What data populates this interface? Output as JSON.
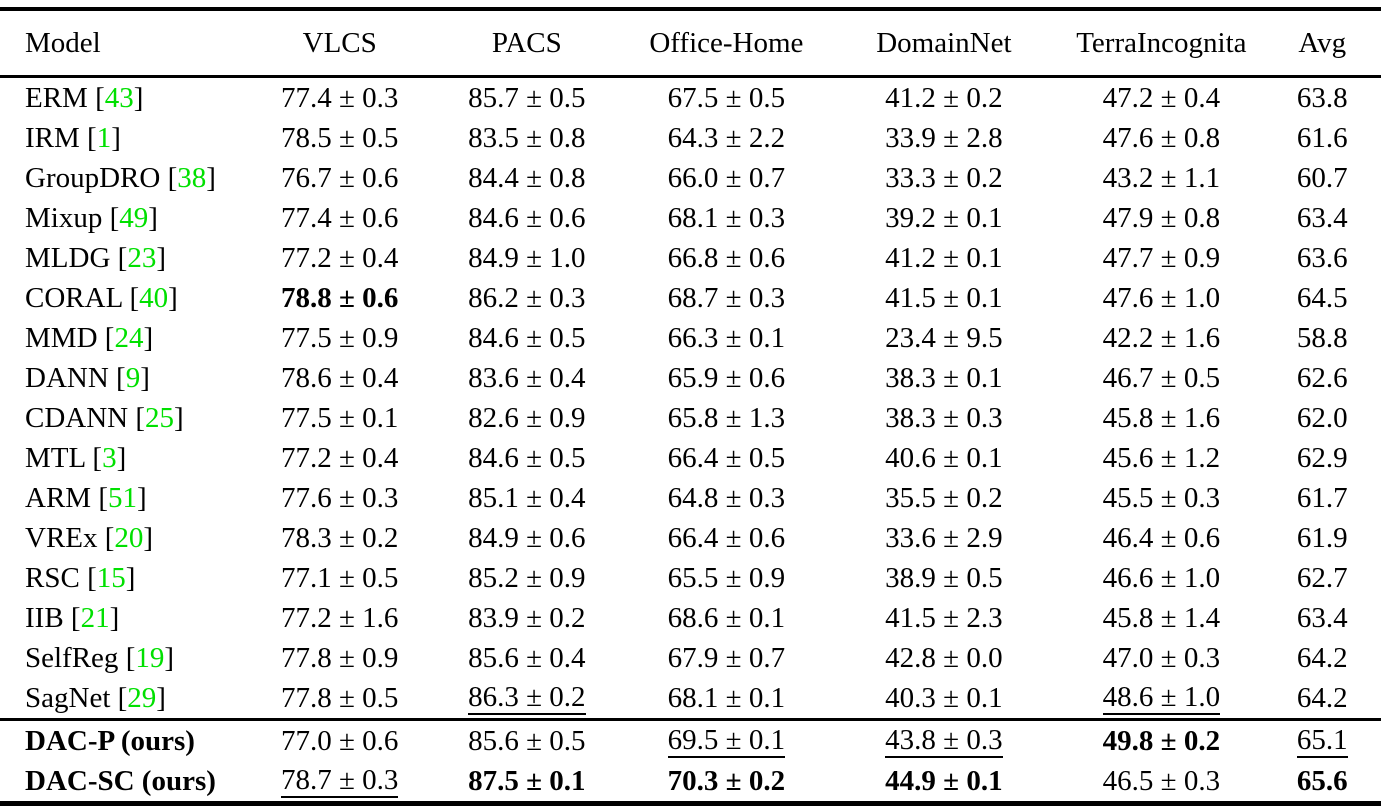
{
  "page": {
    "background": "#ffffff",
    "text_color": "#000000"
  },
  "table": {
    "citation_color": "#00e000",
    "columns": [
      "Model",
      "VLCS",
      "PACS",
      "Office-Home",
      "DomainNet",
      "TerraIncognita",
      "Avg"
    ],
    "rows": [
      {
        "model": "ERM",
        "citation": "43",
        "bold": false,
        "rule_above": false,
        "cells": [
          {
            "t": "77.4 ± 0.3"
          },
          {
            "t": "85.7 ± 0.5"
          },
          {
            "t": "67.5 ± 0.5"
          },
          {
            "t": "41.2 ± 0.2"
          },
          {
            "t": "47.2 ± 0.4"
          },
          {
            "t": "63.8"
          }
        ]
      },
      {
        "model": "IRM",
        "citation": "1",
        "bold": false,
        "rule_above": false,
        "cells": [
          {
            "t": "78.5 ± 0.5"
          },
          {
            "t": "83.5 ± 0.8"
          },
          {
            "t": "64.3 ± 2.2"
          },
          {
            "t": "33.9 ± 2.8"
          },
          {
            "t": "47.6 ± 0.8"
          },
          {
            "t": "61.6"
          }
        ]
      },
      {
        "model": "GroupDRO",
        "citation": "38",
        "bold": false,
        "rule_above": false,
        "cells": [
          {
            "t": "76.7 ± 0.6"
          },
          {
            "t": "84.4 ± 0.8"
          },
          {
            "t": "66.0 ± 0.7"
          },
          {
            "t": "33.3 ± 0.2"
          },
          {
            "t": "43.2 ± 1.1"
          },
          {
            "t": "60.7"
          }
        ]
      },
      {
        "model": "Mixup",
        "citation": "49",
        "bold": false,
        "rule_above": false,
        "cells": [
          {
            "t": "77.4 ± 0.6"
          },
          {
            "t": "84.6 ± 0.6"
          },
          {
            "t": "68.1 ± 0.3"
          },
          {
            "t": "39.2 ± 0.1"
          },
          {
            "t": "47.9 ± 0.8"
          },
          {
            "t": "63.4"
          }
        ]
      },
      {
        "model": "MLDG",
        "citation": "23",
        "bold": false,
        "rule_above": false,
        "cells": [
          {
            "t": "77.2 ± 0.4"
          },
          {
            "t": "84.9 ± 1.0"
          },
          {
            "t": "66.8 ± 0.6"
          },
          {
            "t": "41.2 ± 0.1"
          },
          {
            "t": "47.7 ± 0.9"
          },
          {
            "t": "63.6"
          }
        ]
      },
      {
        "model": "CORAL",
        "citation": "40",
        "bold": false,
        "rule_above": false,
        "cells": [
          {
            "t": "78.8 ± 0.6",
            "b": true
          },
          {
            "t": "86.2 ± 0.3"
          },
          {
            "t": "68.7 ± 0.3"
          },
          {
            "t": "41.5 ± 0.1"
          },
          {
            "t": "47.6 ± 1.0"
          },
          {
            "t": "64.5"
          }
        ]
      },
      {
        "model": "MMD",
        "citation": "24",
        "bold": false,
        "rule_above": false,
        "cells": [
          {
            "t": "77.5 ± 0.9"
          },
          {
            "t": "84.6 ± 0.5"
          },
          {
            "t": "66.3 ± 0.1"
          },
          {
            "t": "23.4 ± 9.5"
          },
          {
            "t": "42.2 ± 1.6"
          },
          {
            "t": "58.8"
          }
        ]
      },
      {
        "model": "DANN",
        "citation": "9",
        "bold": false,
        "rule_above": false,
        "cells": [
          {
            "t": "78.6 ± 0.4"
          },
          {
            "t": "83.6 ± 0.4"
          },
          {
            "t": "65.9 ± 0.6"
          },
          {
            "t": "38.3 ± 0.1"
          },
          {
            "t": "46.7 ± 0.5"
          },
          {
            "t": "62.6"
          }
        ]
      },
      {
        "model": "CDANN",
        "citation": "25",
        "bold": false,
        "rule_above": false,
        "cells": [
          {
            "t": "77.5 ± 0.1"
          },
          {
            "t": "82.6 ± 0.9"
          },
          {
            "t": "65.8 ± 1.3"
          },
          {
            "t": "38.3 ± 0.3"
          },
          {
            "t": "45.8 ± 1.6"
          },
          {
            "t": "62.0"
          }
        ]
      },
      {
        "model": "MTL",
        "citation": "3",
        "bold": false,
        "rule_above": false,
        "cells": [
          {
            "t": "77.2 ± 0.4"
          },
          {
            "t": "84.6 ± 0.5"
          },
          {
            "t": "66.4 ± 0.5"
          },
          {
            "t": "40.6 ± 0.1"
          },
          {
            "t": "45.6 ± 1.2"
          },
          {
            "t": "62.9"
          }
        ]
      },
      {
        "model": "ARM",
        "citation": "51",
        "bold": false,
        "rule_above": false,
        "cells": [
          {
            "t": "77.6 ± 0.3"
          },
          {
            "t": "85.1 ± 0.4"
          },
          {
            "t": "64.8 ± 0.3"
          },
          {
            "t": "35.5 ± 0.2"
          },
          {
            "t": "45.5 ± 0.3"
          },
          {
            "t": "61.7"
          }
        ]
      },
      {
        "model": "VREx",
        "citation": "20",
        "bold": false,
        "rule_above": false,
        "cells": [
          {
            "t": "78.3 ± 0.2"
          },
          {
            "t": "84.9 ± 0.6"
          },
          {
            "t": "66.4 ± 0.6"
          },
          {
            "t": "33.6 ± 2.9"
          },
          {
            "t": "46.4 ± 0.6"
          },
          {
            "t": "61.9"
          }
        ]
      },
      {
        "model": "RSC",
        "citation": "15",
        "bold": false,
        "rule_above": false,
        "cells": [
          {
            "t": "77.1 ± 0.5"
          },
          {
            "t": "85.2 ± 0.9"
          },
          {
            "t": "65.5 ± 0.9"
          },
          {
            "t": "38.9 ± 0.5"
          },
          {
            "t": "46.6 ± 1.0"
          },
          {
            "t": "62.7"
          }
        ]
      },
      {
        "model": "IIB",
        "citation": "21",
        "bold": false,
        "rule_above": false,
        "cells": [
          {
            "t": "77.2 ± 1.6"
          },
          {
            "t": "83.9 ± 0.2"
          },
          {
            "t": "68.6 ± 0.1"
          },
          {
            "t": "41.5 ± 2.3"
          },
          {
            "t": "45.8 ± 1.4"
          },
          {
            "t": "63.4"
          }
        ]
      },
      {
        "model": "SelfReg",
        "citation": "19",
        "bold": false,
        "rule_above": false,
        "cells": [
          {
            "t": "77.8 ± 0.9"
          },
          {
            "t": "85.6 ± 0.4"
          },
          {
            "t": "67.9 ± 0.7"
          },
          {
            "t": "42.8 ± 0.0"
          },
          {
            "t": "47.0 ± 0.3"
          },
          {
            "t": "64.2"
          }
        ]
      },
      {
        "model": "SagNet",
        "citation": "29",
        "bold": false,
        "rule_above": false,
        "cells": [
          {
            "t": "77.8 ± 0.5"
          },
          {
            "t": "86.3 ± 0.2",
            "u": true
          },
          {
            "t": "68.1 ± 0.1"
          },
          {
            "t": "40.3 ± 0.1"
          },
          {
            "t": "48.6 ± 1.0",
            "u": true
          },
          {
            "t": "64.2"
          }
        ]
      },
      {
        "model": "DAC-P (ours)",
        "citation": "",
        "bold": true,
        "rule_above": true,
        "cells": [
          {
            "t": "77.0 ± 0.6"
          },
          {
            "t": "85.6 ± 0.5"
          },
          {
            "t": "69.5 ± 0.1",
            "u": true
          },
          {
            "t": "43.8 ± 0.3",
            "u": true
          },
          {
            "t": "49.8 ± 0.2",
            "b": true
          },
          {
            "t": "65.1",
            "u": true
          }
        ]
      },
      {
        "model": "DAC-SC (ours)",
        "citation": "",
        "bold": true,
        "rule_above": false,
        "cells": [
          {
            "t": "78.7 ± 0.3",
            "u": true
          },
          {
            "t": "87.5 ± 0.1",
            "b": true
          },
          {
            "t": "70.3 ± 0.2",
            "b": true
          },
          {
            "t": "44.9 ± 0.1",
            "b": true
          },
          {
            "t": "46.5 ± 0.3"
          },
          {
            "t": "65.6",
            "b": true
          }
        ]
      }
    ]
  }
}
